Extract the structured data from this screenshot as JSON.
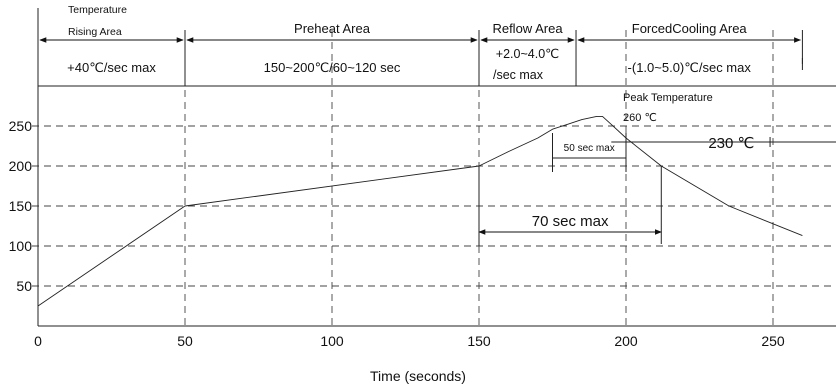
{
  "chart_data": {
    "type": "line",
    "title": "",
    "xlabel": "Time (seconds)",
    "ylabel": "",
    "xlim": [
      0,
      272
    ],
    "ylim": [
      15,
      295
    ],
    "xticks": [
      0,
      50,
      100,
      150,
      200,
      250
    ],
    "yticks": [
      50,
      100,
      150,
      200,
      250
    ],
    "x_tick_labels": [
      "0",
      "50",
      "100",
      "150",
      "200",
      "250"
    ],
    "y_tick_labels": [
      "50",
      "100",
      "150",
      "200",
      "250"
    ],
    "grid": "dashed",
    "series": [
      {
        "x": [
          0,
          50,
          150,
          160,
          170,
          175,
          180,
          185,
          190,
          192,
          195,
          200,
          212,
          235,
          260
        ],
        "y": [
          25,
          150,
          200,
          218,
          235,
          246,
          252,
          258,
          262,
          262,
          252,
          235,
          200,
          150,
          113
        ]
      }
    ],
    "zones": [
      {
        "label": "Temperature",
        "label2": "Rising Area",
        "x_from": 0,
        "x_to": 50,
        "rate": "+40℃/sec max"
      },
      {
        "label": "Preheat Area",
        "x_from": 50,
        "x_to": 150,
        "rate": "150~200℃/60~120 sec"
      },
      {
        "label": "Reflow Area",
        "x_from": 150,
        "x_to": 183,
        "rate": "+2.0~4.0℃",
        "rate2": "/sec max"
      },
      {
        "label": "ForcedCooling Area",
        "x_from": 183,
        "x_to": 260,
        "rate": "-(1.0~5.0)℃/sec max"
      }
    ],
    "annotations": {
      "peak_label": "Peak Temperature",
      "peak_value": "260 ℃",
      "t230_label": "230 ℃",
      "t230": 230,
      "window50": {
        "label": "50 sec max",
        "x_from": 175,
        "x_to": 200
      },
      "window70": {
        "label": "70 sec max",
        "x_from": 150,
        "x_to": 212
      }
    }
  }
}
